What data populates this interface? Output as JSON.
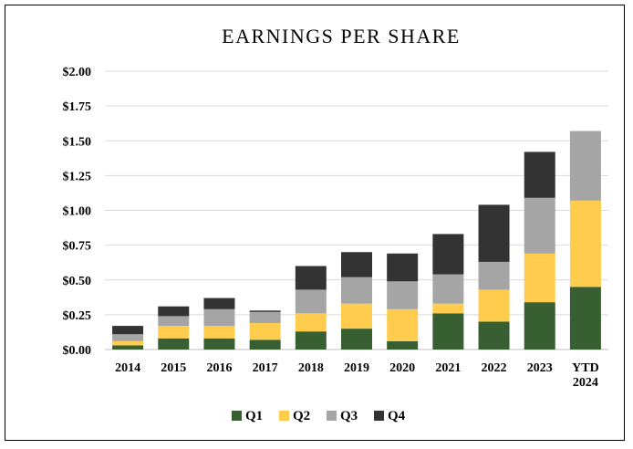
{
  "chart_data": {
    "type": "bar",
    "stacked": true,
    "title": "EARNINGS PER SHARE",
    "categories": [
      "2014",
      "2015",
      "2016",
      "2017",
      "2018",
      "2019",
      "2020",
      "2021",
      "2022",
      "2023",
      "YTD 2024"
    ],
    "series": [
      {
        "name": "Q1",
        "color": "#375F32",
        "values": [
          0.03,
          0.08,
          0.08,
          0.07,
          0.13,
          0.15,
          0.06,
          0.26,
          0.2,
          0.34,
          0.45
        ]
      },
      {
        "name": "Q2",
        "color": "#FFCC4D",
        "values": [
          0.03,
          0.09,
          0.09,
          0.12,
          0.13,
          0.18,
          0.23,
          0.07,
          0.23,
          0.35,
          0.62
        ]
      },
      {
        "name": "Q3",
        "color": "#A5A5A5",
        "values": [
          0.05,
          0.07,
          0.12,
          0.08,
          0.17,
          0.19,
          0.2,
          0.21,
          0.2,
          0.4,
          0.5
        ]
      },
      {
        "name": "Q4",
        "color": "#333333",
        "values": [
          0.06,
          0.07,
          0.08,
          0.01,
          0.17,
          0.18,
          0.2,
          0.29,
          0.41,
          0.33,
          0.0
        ]
      }
    ],
    "ylim": [
      0,
      2.0
    ],
    "yticks": [
      "$0.00",
      "$0.25",
      "$0.50",
      "$0.75",
      "$1.00",
      "$1.25",
      "$1.50",
      "$1.75",
      "$2.00"
    ],
    "grid": true,
    "legend": "bottom",
    "xlabel": "",
    "ylabel": ""
  }
}
